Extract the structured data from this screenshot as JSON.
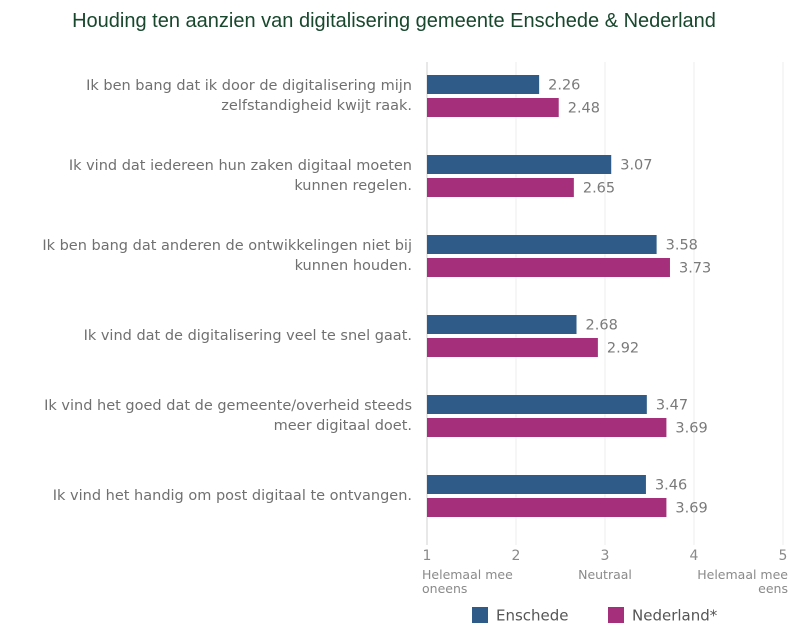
{
  "chart_data": {
    "type": "bar",
    "orientation": "horizontal",
    "title": "Houding ten aanzien van digitalisering gemeente Enschede & Nederland",
    "categories": [
      "Ik ben bang dat ik door de digitalisering mijn zelfstandigheid kwijt raak.",
      "Ik vind dat iedereen hun zaken digitaal moeten kunnen regelen.",
      "Ik ben bang dat anderen de ontwikkelingen niet bij kunnen houden.",
      "Ik vind dat de digitalisering veel te snel gaat.",
      "Ik vind het goed dat de gemeente/overheid steeds meer digitaal doet.",
      "Ik vind het handig om post digitaal te ontvangen."
    ],
    "series": [
      {
        "name": "Enschede",
        "color": "#2f5b88",
        "values": [
          2.26,
          3.07,
          3.58,
          2.68,
          3.47,
          3.46
        ]
      },
      {
        "name": "Nederland*",
        "color": "#a62f7b",
        "values": [
          2.48,
          2.65,
          3.73,
          2.92,
          3.69,
          3.69
        ]
      }
    ],
    "xlim": [
      1,
      5
    ],
    "xticks": [
      1,
      2,
      3,
      4,
      5
    ],
    "scale_labels": [
      {
        "value": 1,
        "label": "Helemaal mee oneens"
      },
      {
        "value": 3,
        "label": "Neutraal"
      },
      {
        "value": 5,
        "label": "Helemaal mee eens"
      }
    ],
    "legend": "bottom"
  }
}
